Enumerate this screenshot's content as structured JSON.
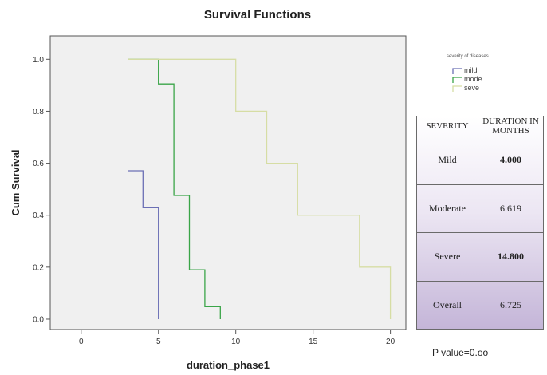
{
  "chart_data": {
    "type": "line",
    "step": true,
    "title": "Survival Functions",
    "xlabel": "duration_phase1",
    "ylabel": "Cum Survival",
    "xlim": [
      -2,
      21
    ],
    "ylim": [
      -0.04,
      1.09
    ],
    "xticks": [
      0,
      5,
      10,
      15,
      20
    ],
    "yticks": [
      0.0,
      0.2,
      0.4,
      0.6,
      0.8,
      1.0
    ],
    "grid": false,
    "plot_background": "#f0f0f0",
    "legend": {
      "title": "severity of diseases",
      "placement": "right-top"
    },
    "series": [
      {
        "name": "mild",
        "color": "#6b6fb5",
        "x": [
          3,
          4,
          4,
          5,
          5
        ],
        "y": [
          0.571,
          0.571,
          0.429,
          0.429,
          0.0
        ]
      },
      {
        "name": "mode",
        "color": "#3aa548",
        "x": [
          3,
          5,
          5,
          6,
          6,
          7,
          7,
          8,
          8,
          9,
          9
        ],
        "y": [
          1.0,
          1.0,
          0.905,
          0.905,
          0.476,
          0.476,
          0.19,
          0.19,
          0.048,
          0.048,
          0.0
        ]
      },
      {
        "name": "seve",
        "color": "#d6dda4",
        "x": [
          3,
          10,
          10,
          12,
          12,
          14,
          14,
          18,
          18,
          20,
          20
        ],
        "y": [
          1.0,
          1.0,
          0.8,
          0.8,
          0.6,
          0.6,
          0.4,
          0.4,
          0.2,
          0.2,
          0.0
        ]
      }
    ]
  },
  "table": {
    "headers": [
      "SEVERITY",
      "DURATION IN MONTHS"
    ],
    "rows": [
      {
        "label": "Mild",
        "value": "4.000",
        "bold": true
      },
      {
        "label": "Moderate",
        "value": "6.619",
        "bold": false
      },
      {
        "label": "Severe",
        "value": "14.800",
        "bold": true
      },
      {
        "label": "Overall",
        "value": "6.725",
        "bold": false
      }
    ]
  },
  "pvalue": "P value=0.oo"
}
